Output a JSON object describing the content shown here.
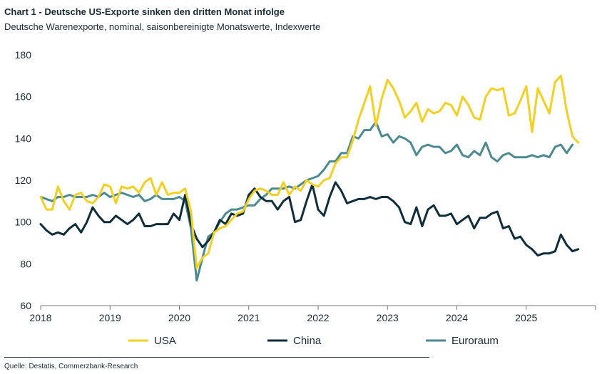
{
  "header": {
    "title": "Chart 1 - Deutsche US-Exporte sinken den dritten Monat infolge",
    "subtitle": "Deutsche Warenexporte, nominal, saisonbereinigte Monatswerte, Indexwerte"
  },
  "footer": {
    "source": "Quelle: Destatis, Commerzbank-Research"
  },
  "chart_data": {
    "type": "line",
    "title": "Chart 1 - Deutsche US-Exporte sinken den dritten Monat infolge",
    "subtitle": "Deutsche Warenexporte, nominal, saisonbereinigte Monatswerte, Indexwerte",
    "xlabel": "",
    "ylabel": "",
    "ylim": [
      60,
      180
    ],
    "yticks": [
      60,
      80,
      100,
      120,
      140,
      160,
      180
    ],
    "xticks": [
      "2018",
      "2019",
      "2020",
      "2021",
      "2022",
      "2023",
      "2024",
      "2025"
    ],
    "xlim": [
      "2018-01",
      "2025-12"
    ],
    "grid": false,
    "legend_position": "bottom",
    "start_month": "2018-01",
    "series": [
      {
        "name": "USA",
        "color": "#f2d023",
        "values": [
          112,
          106,
          106,
          117,
          110,
          106,
          113,
          114,
          110,
          109,
          112,
          118,
          117,
          109,
          117,
          116,
          117,
          114,
          119,
          121,
          113,
          119,
          113,
          114,
          114,
          116,
          105,
          78,
          83,
          85,
          95,
          97,
          98,
          101,
          104,
          105,
          111,
          115,
          116,
          115,
          113,
          113,
          119,
          113,
          117,
          115,
          120,
          118,
          117,
          120,
          121,
          128,
          131,
          131,
          139,
          149,
          157,
          165,
          146,
          159,
          168,
          164,
          158,
          150,
          153,
          157,
          148,
          154,
          152,
          153,
          157,
          156,
          151,
          160,
          156,
          150,
          149,
          160,
          164,
          163,
          164,
          151,
          152,
          158,
          165,
          143,
          164,
          158,
          152,
          167,
          170,
          153,
          141,
          138
        ]
      },
      {
        "name": "China",
        "color": "#0f2d3a",
        "values": [
          99,
          96,
          94,
          95,
          94,
          97,
          99,
          95,
          100,
          107,
          103,
          100,
          100,
          103,
          101,
          99,
          101,
          104,
          98,
          98,
          99,
          99,
          99,
          104,
          101,
          113,
          99,
          92,
          88,
          91,
          95,
          101,
          99,
          104,
          103,
          104,
          113,
          116,
          112,
          110,
          110,
          106,
          110,
          112,
          100,
          101,
          110,
          118,
          106,
          103,
          112,
          119,
          115,
          109,
          110,
          111,
          111,
          112,
          111,
          112,
          112,
          110,
          107,
          100,
          99,
          107,
          98,
          106,
          108,
          103,
          103,
          104,
          99,
          101,
          103,
          97,
          102,
          102,
          104,
          105,
          97,
          98,
          92,
          93,
          89,
          87,
          84,
          85,
          85,
          86,
          94,
          89,
          86,
          87
        ]
      },
      {
        "name": "Euroraum",
        "color": "#4a8a90",
        "values": [
          112,
          111,
          110,
          112,
          112,
          113,
          112,
          112,
          112,
          113,
          112,
          114,
          112,
          113,
          114,
          113,
          112,
          113,
          110,
          111,
          113,
          111,
          111,
          111,
          112,
          110,
          97,
          72,
          83,
          93,
          95,
          100,
          104,
          106,
          106,
          107,
          108,
          108,
          111,
          113,
          116,
          116,
          116,
          117,
          116,
          118,
          120,
          121,
          122,
          125,
          129,
          129,
          133,
          133,
          141,
          140,
          144,
          144,
          148,
          141,
          142,
          138,
          141,
          140,
          138,
          132,
          136,
          137,
          136,
          136,
          133,
          134,
          137,
          132,
          131,
          134,
          132,
          138,
          131,
          129,
          132,
          133,
          131,
          131,
          131,
          132,
          131,
          132,
          131,
          136,
          137,
          133,
          137
        ]
      }
    ]
  }
}
